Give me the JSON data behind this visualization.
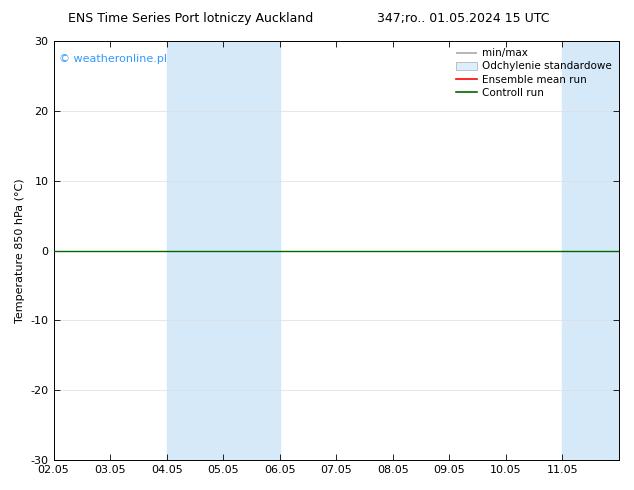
{
  "title_left": "ENS Time Series Port lotniczy Auckland",
  "title_right": "347;ro.. 01.05.2024 15 UTC",
  "ylabel": "Temperature 850 hPa (°C)",
  "xlabel_ticks": [
    "02.05",
    "03.05",
    "04.05",
    "05.05",
    "06.05",
    "07.05",
    "08.05",
    "09.05",
    "10.05",
    "11.05"
  ],
  "ylim": [
    -30,
    30
  ],
  "yticks": [
    -30,
    -20,
    -10,
    0,
    10,
    20,
    30
  ],
  "background_color": "#ffffff",
  "plot_bg_color": "#ffffff",
  "shaded_bands": [
    {
      "x_start": 4.0,
      "x_end": 6.0,
      "color": "#d6e9f8"
    },
    {
      "x_start": 11.0,
      "x_end": 12.0,
      "color": "#d6e9f8"
    }
  ],
  "control_run_y": 0,
  "control_run_color": "#006600",
  "ensemble_mean_color": "#ff0000",
  "watermark_text": "© weatheronline.pl",
  "watermark_color": "#3399ff",
  "legend_minmax_color": "#aaaaaa",
  "legend_std_facecolor": "#ddeeff",
  "legend_std_edgecolor": "#aaaaaa",
  "x_min": 2.0,
  "x_max": 12.0,
  "tick_positions": [
    2,
    3,
    4,
    5,
    6,
    7,
    8,
    9,
    10,
    11
  ]
}
